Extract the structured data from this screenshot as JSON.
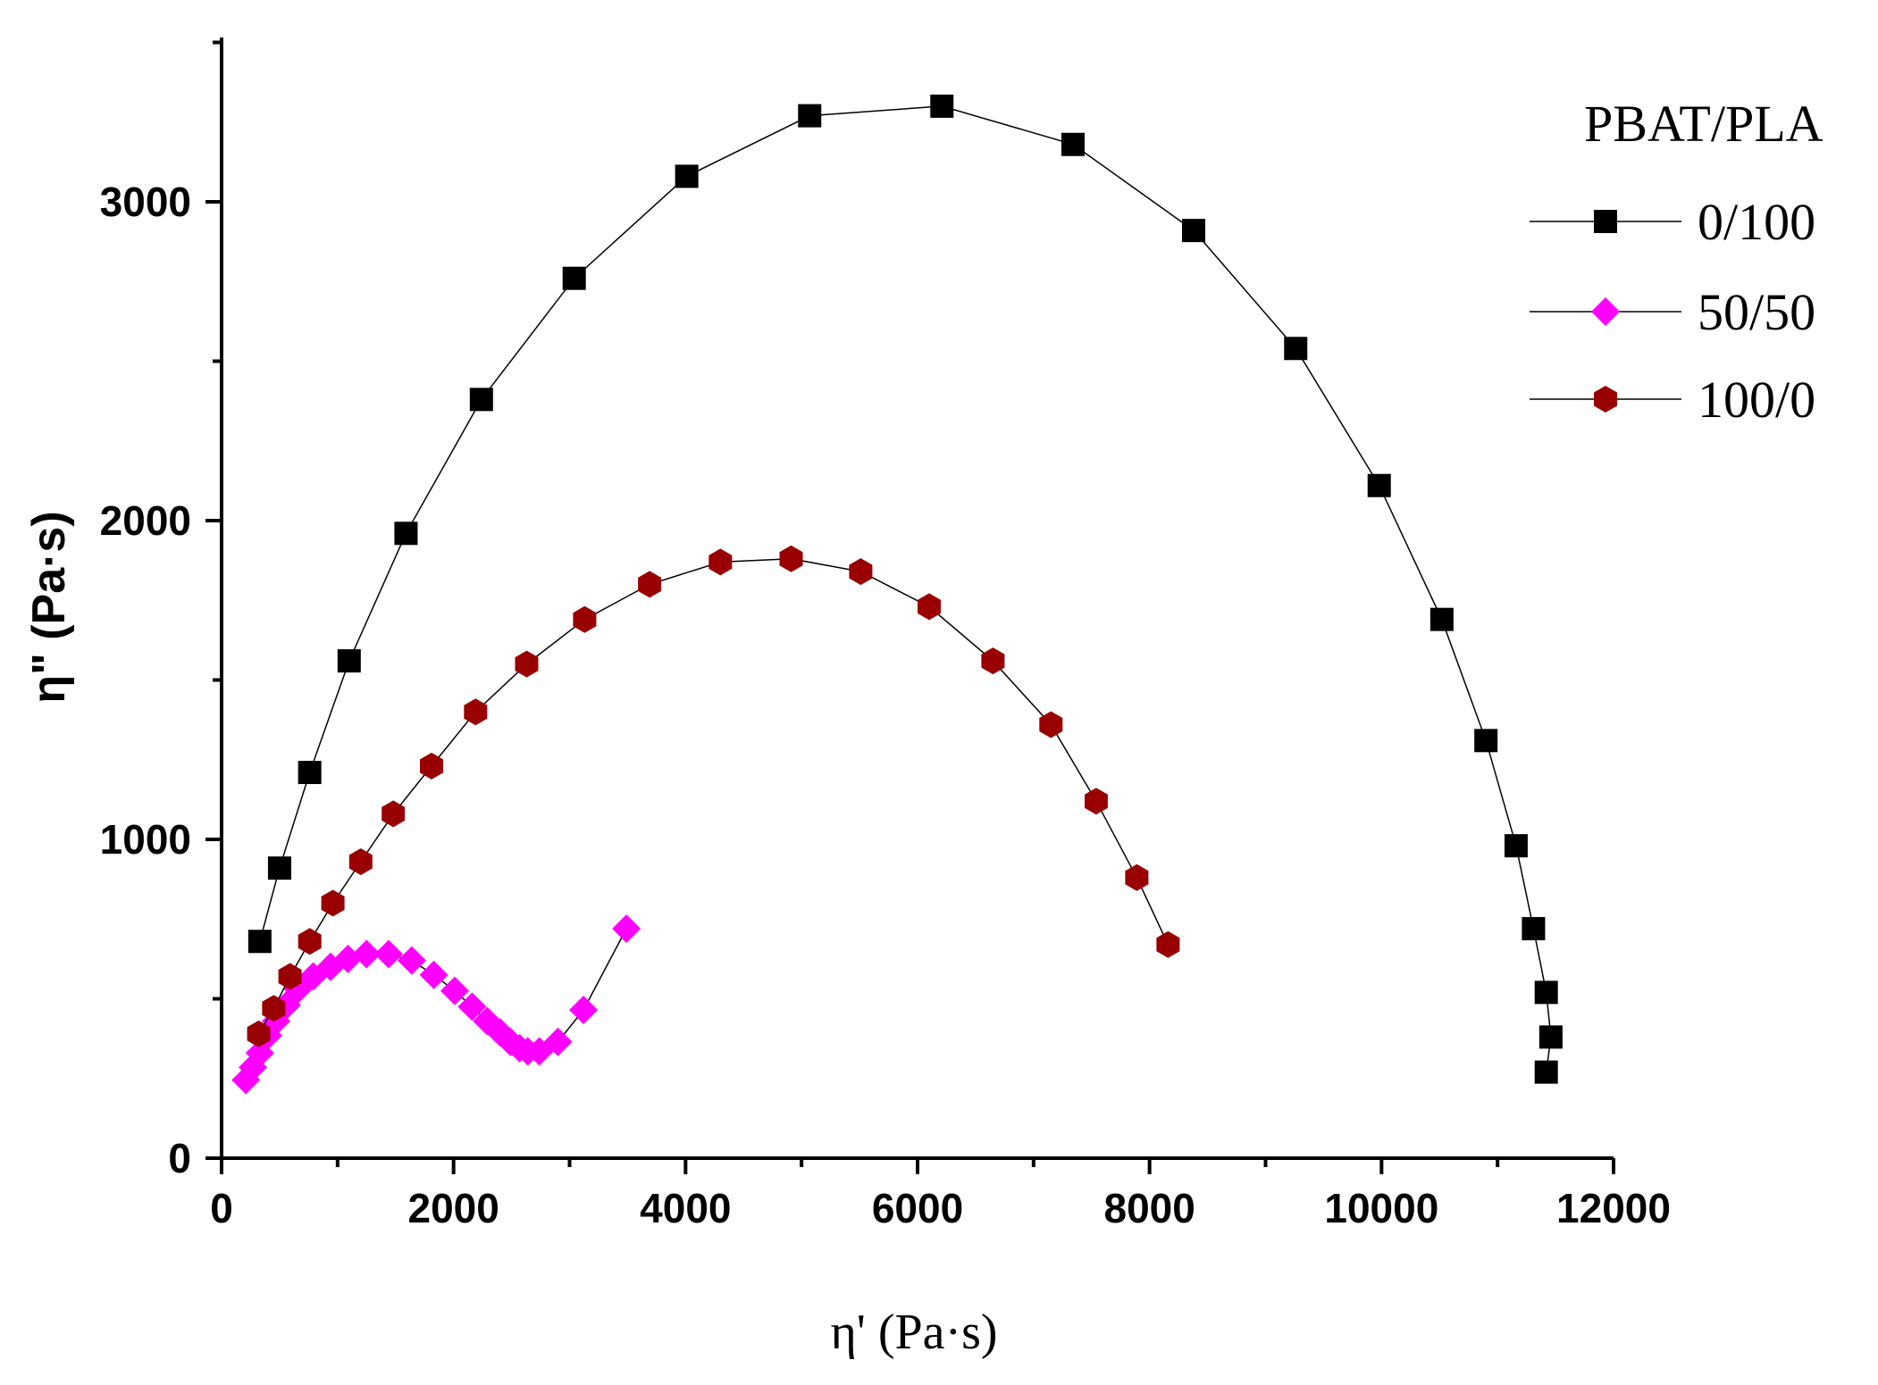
{
  "chart_data": {
    "type": "scatter",
    "title": "",
    "xlabel": "η' (Pa·s)",
    "ylabel": "η\" (Pa·s)",
    "xlim": [
      0,
      12000
    ],
    "ylim": [
      0,
      3500
    ],
    "x_ticks": [
      0,
      2000,
      4000,
      6000,
      8000,
      10000,
      12000
    ],
    "y_ticks": [
      0,
      1000,
      2000,
      3000
    ],
    "legend_title": "PBAT/PLA",
    "legend_position": "top-right",
    "grid": false,
    "series": [
      {
        "name": "0/100",
        "marker": "square",
        "color": "#000000",
        "points": [
          [
            330,
            680
          ],
          [
            500,
            910
          ],
          [
            760,
            1210
          ],
          [
            1100,
            1560
          ],
          [
            1590,
            1960
          ],
          [
            2240,
            2380
          ],
          [
            3040,
            2760
          ],
          [
            4010,
            3080
          ],
          [
            5070,
            3270
          ],
          [
            6210,
            3300
          ],
          [
            7340,
            3180
          ],
          [
            8380,
            2910
          ],
          [
            9260,
            2540
          ],
          [
            9980,
            2110
          ],
          [
            10520,
            1690
          ],
          [
            10900,
            1310
          ],
          [
            11160,
            980
          ],
          [
            11310,
            720
          ],
          [
            11420,
            520
          ],
          [
            11460,
            380
          ],
          [
            11420,
            270
          ]
        ]
      },
      {
        "name": "50/50",
        "marker": "diamond",
        "color": "#ff00ff",
        "points": [
          [
            210,
            245
          ],
          [
            270,
            285
          ],
          [
            330,
            330
          ],
          [
            400,
            385
          ],
          [
            470,
            430
          ],
          [
            560,
            480
          ],
          [
            660,
            530
          ],
          [
            790,
            570
          ],
          [
            940,
            600
          ],
          [
            1090,
            625
          ],
          [
            1250,
            640
          ],
          [
            1440,
            640
          ],
          [
            1640,
            620
          ],
          [
            1830,
            575
          ],
          [
            2010,
            525
          ],
          [
            2160,
            475
          ],
          [
            2290,
            430
          ],
          [
            2400,
            395
          ],
          [
            2490,
            365
          ],
          [
            2570,
            345
          ],
          [
            2640,
            335
          ],
          [
            2740,
            335
          ],
          [
            2900,
            365
          ],
          [
            3120,
            465
          ],
          [
            3490,
            720
          ]
        ]
      },
      {
        "name": "100/0",
        "marker": "hexagon",
        "color": "#990000",
        "points": [
          [
            320,
            390
          ],
          [
            450,
            470
          ],
          [
            590,
            570
          ],
          [
            760,
            680
          ],
          [
            960,
            800
          ],
          [
            1200,
            930
          ],
          [
            1480,
            1080
          ],
          [
            1810,
            1230
          ],
          [
            2190,
            1400
          ],
          [
            2630,
            1550
          ],
          [
            3130,
            1690
          ],
          [
            3690,
            1800
          ],
          [
            4300,
            1870
          ],
          [
            4910,
            1880
          ],
          [
            5510,
            1840
          ],
          [
            6100,
            1730
          ],
          [
            6650,
            1560
          ],
          [
            7150,
            1360
          ],
          [
            7540,
            1120
          ],
          [
            7890,
            880
          ],
          [
            8160,
            670
          ]
        ]
      }
    ]
  }
}
